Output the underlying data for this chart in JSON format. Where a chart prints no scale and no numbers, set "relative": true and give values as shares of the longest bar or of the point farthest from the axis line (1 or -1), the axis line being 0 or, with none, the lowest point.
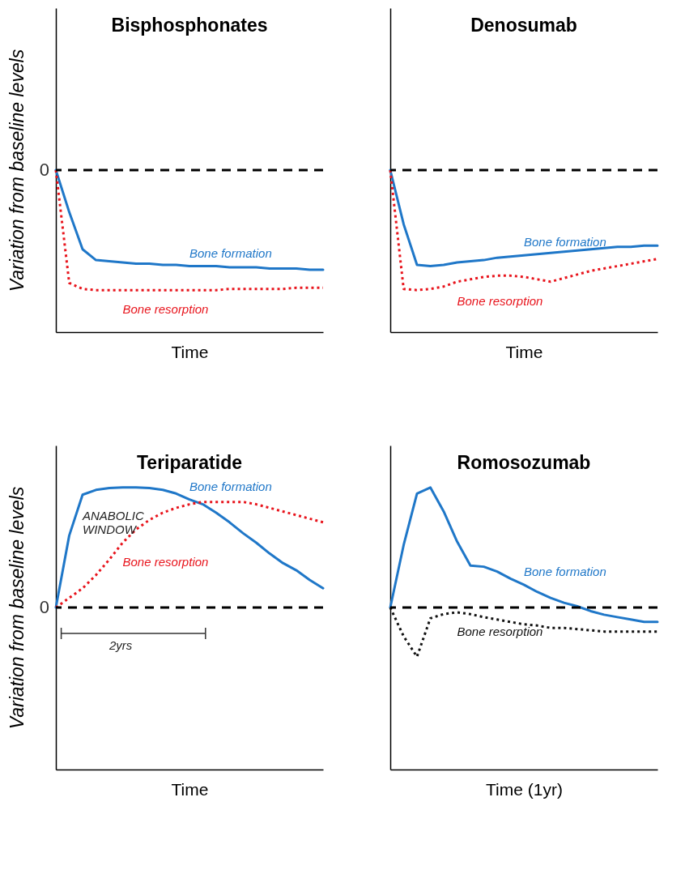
{
  "chart_data": [
    {
      "type": "line",
      "title": "Bisphosphonates",
      "xlabel": "Time",
      "ylabel": "Variation from baseline levels",
      "relative": true,
      "tick_labels": false,
      "categories": [
        null,
        null,
        null,
        null,
        null,
        null,
        null,
        null,
        null,
        null,
        null,
        null,
        null,
        null,
        null,
        null,
        null,
        null,
        null,
        null,
        null
      ],
      "series": [
        {
          "name": "Bone formation",
          "color": "#1f77c8",
          "line_style": "solid",
          "values": [
            0,
            -0.35,
            -0.66,
            -0.75,
            -0.76,
            -0.77,
            -0.78,
            -0.78,
            -0.79,
            -0.79,
            -0.8,
            -0.8,
            -0.8,
            -0.81,
            -0.81,
            -0.81,
            -0.82,
            -0.82,
            -0.82,
            -0.83,
            -0.83
          ]
        },
        {
          "name": "Bone resorption",
          "color": "#e8141c",
          "line_style": "dotted",
          "values": [
            0,
            -0.94,
            -0.99,
            -1,
            -1,
            -1,
            -1,
            -1,
            -1,
            -1,
            -1,
            -1,
            -1,
            -0.99,
            -0.99,
            -0.99,
            -0.99,
            -0.99,
            -0.98,
            -0.98,
            -0.98
          ]
        }
      ],
      "ref_lines": [
        {
          "axis": "y",
          "value": 0,
          "label": "0",
          "line_style": "dashed",
          "color": "#000000"
        }
      ]
    },
    {
      "type": "line",
      "title": "Denosumab",
      "xlabel": "Time",
      "relative": true,
      "tick_labels": false,
      "categories": [
        null,
        null,
        null,
        null,
        null,
        null,
        null,
        null,
        null,
        null,
        null,
        null,
        null,
        null,
        null,
        null,
        null,
        null,
        null,
        null,
        null
      ],
      "series": [
        {
          "name": "Bone formation",
          "color": "#1f77c8",
          "line_style": "solid",
          "values": [
            0,
            -0.45,
            -0.79,
            -0.8,
            -0.79,
            -0.77,
            -0.76,
            -0.75,
            -0.73,
            -0.72,
            -0.71,
            -0.7,
            -0.69,
            -0.68,
            -0.67,
            -0.66,
            -0.65,
            -0.64,
            -0.64,
            -0.63,
            -0.63
          ]
        },
        {
          "name": "Bone resorption",
          "color": "#e8141c",
          "line_style": "dotted",
          "values": [
            0,
            -0.99,
            -1,
            -0.99,
            -0.97,
            -0.93,
            -0.91,
            -0.89,
            -0.88,
            -0.88,
            -0.89,
            -0.91,
            -0.93,
            -0.9,
            -0.87,
            -0.84,
            -0.82,
            -0.8,
            -0.78,
            -0.76,
            -0.74
          ]
        }
      ],
      "ref_lines": [
        {
          "axis": "y",
          "value": 0,
          "line_style": "dashed",
          "color": "#000000"
        }
      ]
    },
    {
      "type": "line",
      "title": "Teriparatide",
      "xlabel": "Time",
      "ylabel": "Variation from baseline levels",
      "relative": true,
      "tick_labels": false,
      "categories": [
        null,
        null,
        null,
        null,
        null,
        null,
        null,
        null,
        null,
        null,
        null,
        null,
        null,
        null,
        null,
        null,
        null,
        null,
        null,
        null,
        null
      ],
      "series": [
        {
          "name": "Bone formation",
          "color": "#1f77c8",
          "line_style": "solid",
          "values": [
            0,
            0.6,
            0.94,
            0.98,
            0.995,
            1,
            1,
            0.995,
            0.98,
            0.95,
            0.9,
            0.86,
            0.79,
            0.71,
            0.62,
            0.54,
            0.45,
            0.37,
            0.31,
            0.23,
            0.16
          ]
        },
        {
          "name": "Bone resorption",
          "color": "#e8141c",
          "line_style": "dotted",
          "values": [
            0,
            0.08,
            0.16,
            0.27,
            0.4,
            0.54,
            0.65,
            0.73,
            0.79,
            0.83,
            0.86,
            0.88,
            0.88,
            0.88,
            0.88,
            0.86,
            0.83,
            0.8,
            0.77,
            0.74,
            0.71
          ]
        }
      ],
      "ref_lines": [
        {
          "axis": "y",
          "value": 0,
          "label": "0",
          "line_style": "dashed",
          "color": "#000000"
        }
      ],
      "annotations": [
        "ANABOLIC WINDOW",
        "2yrs"
      ]
    },
    {
      "type": "line",
      "title": "Romosozumab",
      "xlabel": "Time (1yr)",
      "relative": true,
      "tick_labels": false,
      "categories": [
        null,
        null,
        null,
        null,
        null,
        null,
        null,
        null,
        null,
        null,
        null,
        null,
        null,
        null,
        null,
        null,
        null,
        null,
        null,
        null,
        null
      ],
      "series": [
        {
          "name": "Bone formation",
          "color": "#1f77c8",
          "line_style": "solid",
          "values": [
            0,
            0.52,
            0.95,
            1,
            0.8,
            0.55,
            0.35,
            0.34,
            0.3,
            0.24,
            0.19,
            0.13,
            0.08,
            0.04,
            0.01,
            -0.03,
            -0.06,
            -0.08,
            -0.1,
            -0.12,
            -0.12
          ]
        },
        {
          "name": "Bone resorption",
          "color": "#111111",
          "line_style": "dotted",
          "values": [
            0,
            -0.24,
            -0.41,
            -0.09,
            -0.055,
            -0.04,
            -0.055,
            -0.08,
            -0.1,
            -0.12,
            -0.14,
            -0.15,
            -0.17,
            -0.17,
            -0.18,
            -0.19,
            -0.2,
            -0.2,
            -0.2,
            -0.2,
            -0.2
          ]
        }
      ],
      "ref_lines": [
        {
          "axis": "y",
          "value": 0,
          "line_style": "dashed",
          "color": "#000000"
        }
      ]
    }
  ]
}
